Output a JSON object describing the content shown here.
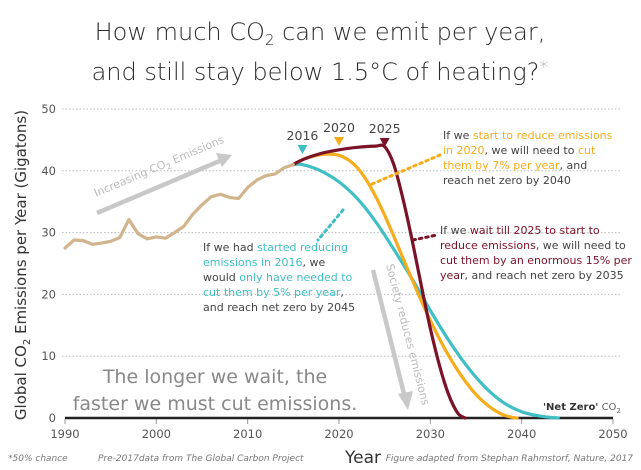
{
  "chart_data": {
    "type": "line",
    "title_line1_pre": "How much CO",
    "title_line1_sub": "2",
    "title_line1_post": " can we emit per year,",
    "title_line2": "and still stay below 1.5°C of heating?",
    "title_asterisk": "*",
    "ylabel_pre": "Global CO",
    "ylabel_sub": "2",
    "ylabel_post": " Emissions per Year (Gigatons)",
    "xlabel": "Year",
    "xlim": [
      1990,
      2050
    ],
    "ylim": [
      0,
      50
    ],
    "x_ticks": [
      "1990",
      "2000",
      "2010",
      "2020",
      "2030",
      "2040",
      "2050"
    ],
    "y_ticks": [
      "0",
      "10",
      "20",
      "30",
      "40",
      "50"
    ],
    "grid": true,
    "series": [
      {
        "name": "Historical emissions",
        "color": "#d2b48c",
        "x": [
          1990,
          1991,
          1992,
          1993,
          1994,
          1995,
          1996,
          1997,
          1998,
          1999,
          2000,
          2001,
          2002,
          2003,
          2004,
          2005,
          2006,
          2007,
          2008,
          2009,
          2010,
          2011,
          2012,
          2013,
          2014,
          2015
        ],
        "y": [
          27.5,
          28.8,
          28.7,
          28.1,
          28.3,
          28.6,
          29.2,
          32.1,
          29.8,
          29.0,
          29.3,
          29.1,
          30.0,
          31.0,
          33.0,
          34.5,
          35.8,
          36.2,
          35.7,
          35.5,
          37.3,
          38.5,
          39.2,
          39.5,
          40.5,
          41.0
        ]
      },
      {
        "name": "Start in 2016 (5% per year, net zero 2045)",
        "color": "#3fbfc4",
        "x": [
          2015,
          2016,
          2018,
          2020,
          2022,
          2024,
          2026,
          2028,
          2030,
          2032,
          2034,
          2036,
          2038,
          2040,
          2042,
          2044
        ],
        "y": [
          41.0,
          41.0,
          40.0,
          38.2,
          35.5,
          31.8,
          27.3,
          22.5,
          17.4,
          12.6,
          8.4,
          5.0,
          2.5,
          1.0,
          0.3,
          0.0
        ]
      },
      {
        "name": "Start in 2020 (7% per year, net zero 2040)",
        "color": "#f7ac1c",
        "x": [
          2015,
          2016,
          2017,
          2018,
          2019,
          2020,
          2021,
          2022,
          2023,
          2024,
          2025,
          2026,
          2027,
          2028,
          2029,
          2030,
          2031,
          2032,
          2033,
          2034,
          2035,
          2036,
          2037,
          2038,
          2039,
          2039.5
        ],
        "y": [
          41.0,
          41.8,
          42.3,
          42.6,
          42.7,
          42.5,
          41.8,
          40.5,
          38.5,
          35.9,
          32.8,
          29.4,
          25.9,
          22.4,
          19.0,
          15.8,
          12.8,
          10.1,
          7.7,
          5.6,
          3.8,
          2.4,
          1.3,
          0.5,
          0.1,
          0.0
        ]
      },
      {
        "name": "Start in 2025 (15% per year, net zero 2035)",
        "color": "#7a1228",
        "x": [
          2015,
          2016,
          2018,
          2020,
          2022,
          2024,
          2025,
          2026,
          2027,
          2028,
          2029,
          2030,
          2031,
          2032,
          2033,
          2033.8
        ],
        "y": [
          41.0,
          41.8,
          42.8,
          43.4,
          43.8,
          44.0,
          43.9,
          41.0,
          35.5,
          28.8,
          21.5,
          14.5,
          8.5,
          3.8,
          0.8,
          0.0
        ]
      }
    ],
    "markers": [
      {
        "label": "2016",
        "year": 2016,
        "color": "#3fbfc4"
      },
      {
        "label": "2020",
        "year": 2020,
        "color": "#f7ac1c"
      },
      {
        "label": "2025",
        "year": 2025,
        "color": "#7a1228"
      }
    ],
    "annotations": {
      "orange": {
        "lines": [
          [
            {
              "t": "If we ",
              "c": "#444"
            },
            {
              "t": "start to reduce emissions",
              "c": "#f7ac1c"
            }
          ],
          [
            {
              "t": "in 2020",
              "c": "#f7ac1c"
            },
            {
              "t": ", we will need to ",
              "c": "#444"
            },
            {
              "t": "cut",
              "c": "#f7ac1c"
            }
          ],
          [
            {
              "t": "them by 7% per year",
              "c": "#f7ac1c"
            },
            {
              "t": ", and",
              "c": "#444"
            }
          ],
          [
            {
              "t": "reach net zero by 2040",
              "c": "#444"
            }
          ]
        ]
      },
      "maroon": {
        "lines": [
          [
            {
              "t": "If we ",
              "c": "#444"
            },
            {
              "t": "wait till 2025 to start to",
              "c": "#7a1228"
            }
          ],
          [
            {
              "t": "reduce emissions",
              "c": "#7a1228"
            },
            {
              "t": ", we will need to",
              "c": "#444"
            }
          ],
          [
            {
              "t": "cut them by an enormous 15% per",
              "c": "#7a1228"
            }
          ],
          [
            {
              "t": "year",
              "c": "#7a1228"
            },
            {
              "t": ", and reach net zero by 2035",
              "c": "#444"
            }
          ]
        ]
      },
      "teal": {
        "lines": [
          [
            {
              "t": "If we had ",
              "c": "#444"
            },
            {
              "t": "started reducing",
              "c": "#3fbfc4"
            }
          ],
          [
            {
              "t": "emissions in 2016",
              "c": "#3fbfc4"
            },
            {
              "t": ", we",
              "c": "#444"
            }
          ],
          [
            {
              "t": "would ",
              "c": "#444"
            },
            {
              "t": "only have needed to",
              "c": "#3fbfc4"
            }
          ],
          [
            {
              "t": "cut them by 5% per year",
              "c": "#3fbfc4"
            },
            {
              "t": ",",
              "c": "#444"
            }
          ],
          [
            {
              "t": "and reach net zero by 2045",
              "c": "#444"
            }
          ]
        ]
      }
    },
    "arrow_up_text_pre": "Increasing CO",
    "arrow_up_text_sub": "2",
    "arrow_up_text_post": " Emissions",
    "arrow_down_text": "Society reduces emissions",
    "big_text_line1": "The longer we wait, the",
    "big_text_line2": "faster we must cut emissions.",
    "net_zero_label": "'Net Zero'",
    "net_zero_co2": "CO",
    "net_zero_sub": "2",
    "footnote_left": "*50% chance",
    "footnote_source": "Pre-2017data from The Global Carbon Project",
    "footnote_credit": "Figure adapted from Stephan Rahmstorf, Nature, 2017"
  }
}
